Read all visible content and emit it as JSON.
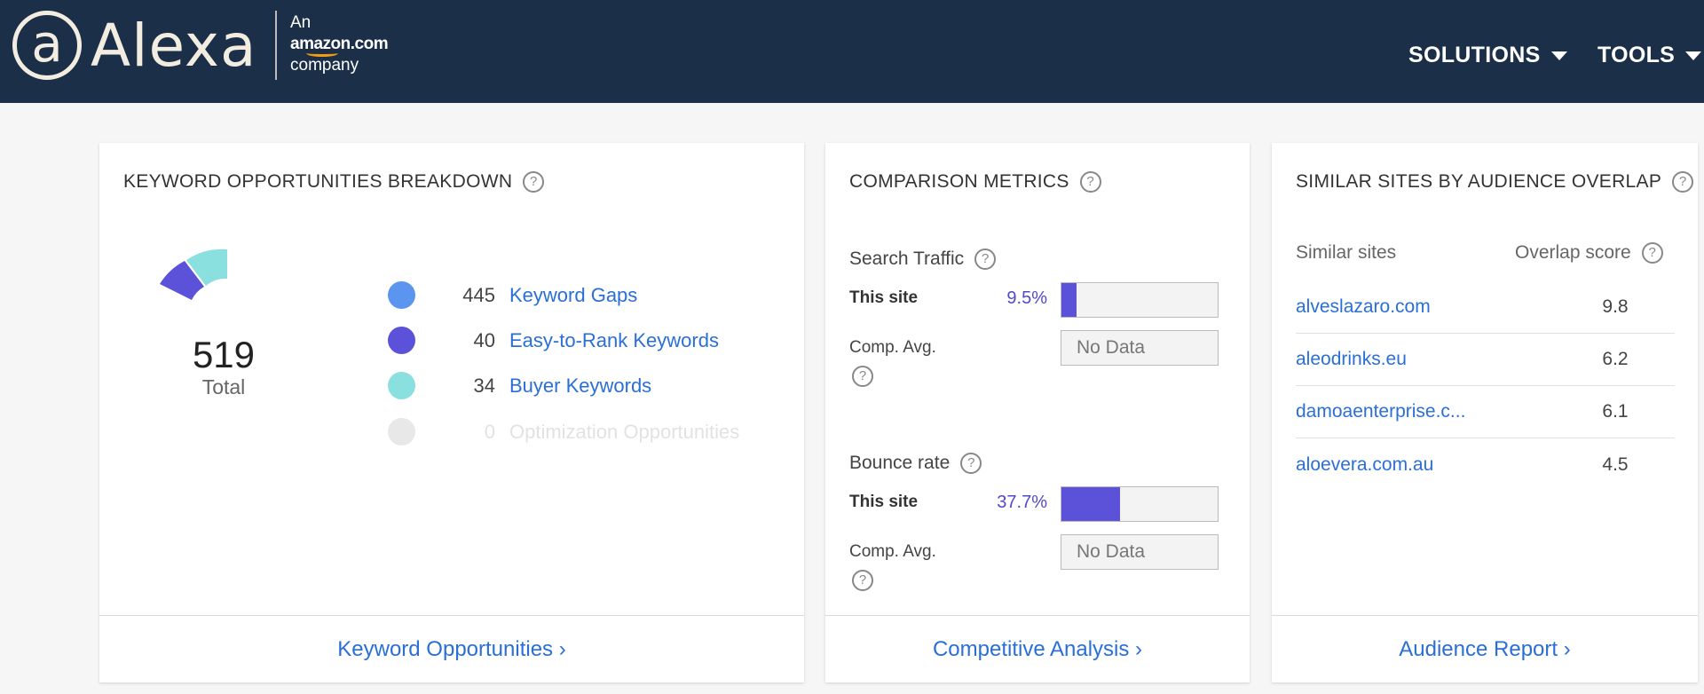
{
  "header": {
    "brand_glyph": "a",
    "brand": "Alexa",
    "tagline_line1": "An",
    "tagline_amazon": "amazon.com",
    "tagline_line3": "company",
    "nav": [
      {
        "label": "SOLUTIONS"
      },
      {
        "label": "TOOLS"
      }
    ]
  },
  "help_glyph": "?",
  "keyword_card": {
    "title": "KEYWORD OPPORTUNITIES BREAKDOWN",
    "total_value": "519",
    "total_label": "Total",
    "items": [
      {
        "value": "445",
        "label": "Keyword Gaps",
        "color": "#5b95ef"
      },
      {
        "value": "40",
        "label": "Easy-to-Rank Keywords",
        "color": "#5b52d9"
      },
      {
        "value": "34",
        "label": "Buyer Keywords",
        "color": "#8ae0df"
      },
      {
        "value": "0",
        "label": "Optimization Opportunities",
        "color": "#e8e8e8"
      }
    ],
    "footer_link": "Keyword Opportunities ›"
  },
  "comparison_card": {
    "title": "COMPARISON METRICS",
    "metrics": [
      {
        "label": "Search Traffic",
        "this_site_label": "This site",
        "this_site_value": "9.5%",
        "this_site_fill": 0.095,
        "comp_label": "Comp. Avg.",
        "comp_value": "No Data"
      },
      {
        "label": "Bounce rate",
        "this_site_label": "This site",
        "this_site_value": "37.7%",
        "this_site_fill": 0.377,
        "comp_label": "Comp. Avg.",
        "comp_value": "No Data"
      }
    ],
    "footer_link": "Competitive Analysis ›"
  },
  "similar_card": {
    "title": "SIMILAR SITES BY AUDIENCE OVERLAP",
    "col_sites": "Similar sites",
    "col_score": "Overlap score",
    "rows": [
      {
        "site": "alveslazaro.com",
        "score": "9.8"
      },
      {
        "site": "aleodrinks.eu",
        "score": "6.2"
      },
      {
        "site": "damoaenterprise.c...",
        "score": "6.1"
      },
      {
        "site": "aloevera.com.au",
        "score": "4.5"
      }
    ],
    "footer_link": "Audience Report ›"
  },
  "colors": {
    "header_bg": "#1b2f48",
    "link": "#2a6fd6",
    "accent": "#5b52d9"
  }
}
